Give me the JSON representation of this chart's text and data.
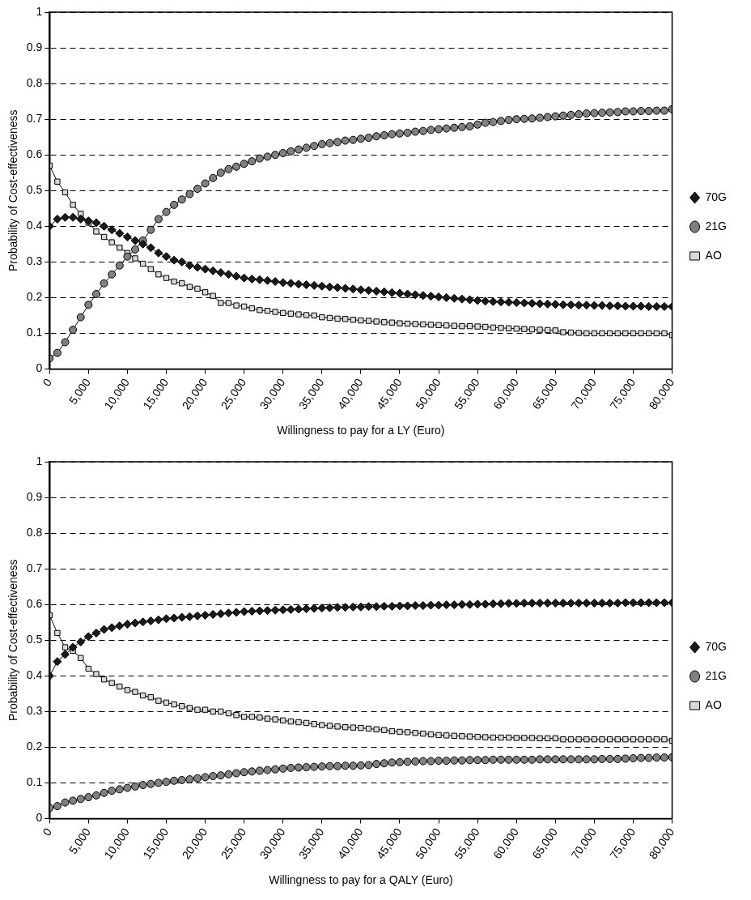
{
  "chart_data": [
    {
      "type": "line",
      "xlabel": "Willingness to pay for a LY (Euro)",
      "ylabel": "Probability of Cost-effectiveness",
      "legend": "right",
      "grid": "y",
      "ylim": [
        0,
        1
      ],
      "yticks": [
        0,
        0.1,
        0.2,
        0.3,
        0.4,
        0.5,
        0.6,
        0.7,
        0.8,
        0.9,
        1
      ],
      "xlim": [
        0,
        80000
      ],
      "xticks": [
        0,
        {
          "value": 5000,
          "label": "5,000"
        },
        {
          "value": 10000,
          "label": "10,000"
        },
        {
          "value": 15000,
          "label": "15,000"
        },
        {
          "value": 20000,
          "label": "20,000"
        },
        {
          "value": 25000,
          "label": "25,000"
        },
        {
          "value": 30000,
          "label": "30,000"
        },
        {
          "value": 35000,
          "label": "35,000"
        },
        {
          "value": 40000,
          "label": "40,000"
        },
        {
          "value": 45000,
          "label": "45,000"
        },
        {
          "value": 50000,
          "label": "50,000"
        },
        {
          "value": 55000,
          "label": "55,000"
        },
        {
          "value": 60000,
          "label": "60,000"
        },
        {
          "value": 65000,
          "label": "65,000"
        },
        {
          "value": 70000,
          "label": "70,000"
        },
        {
          "value": 75000,
          "label": "75,000"
        },
        {
          "value": 80000,
          "label": "80,000"
        }
      ],
      "x": [
        0,
        1000,
        2000,
        3000,
        4000,
        5000,
        6000,
        7000,
        8000,
        9000,
        10000,
        11000,
        12000,
        13000,
        14000,
        15000,
        16000,
        17000,
        18000,
        19000,
        20000,
        21000,
        22000,
        23000,
        24000,
        25000,
        26000,
        27000,
        28000,
        29000,
        30000,
        31000,
        32000,
        33000,
        34000,
        35000,
        36000,
        37000,
        38000,
        39000,
        40000,
        41000,
        42000,
        43000,
        44000,
        45000,
        46000,
        47000,
        48000,
        49000,
        50000,
        51000,
        52000,
        53000,
        54000,
        55000,
        56000,
        57000,
        58000,
        59000,
        60000,
        61000,
        62000,
        63000,
        64000,
        65000,
        66000,
        67000,
        68000,
        69000,
        70000,
        71000,
        72000,
        73000,
        74000,
        75000,
        76000,
        77000,
        78000,
        79000,
        80000
      ],
      "series": [
        {
          "name": "70G",
          "color": "#1a1a1a",
          "marker": "diamond",
          "values": [
            0.4,
            0.42,
            0.425,
            0.425,
            0.42,
            0.415,
            0.41,
            0.4,
            0.39,
            0.38,
            0.37,
            0.36,
            0.35,
            0.34,
            0.325,
            0.315,
            0.305,
            0.3,
            0.29,
            0.285,
            0.28,
            0.275,
            0.27,
            0.265,
            0.26,
            0.255,
            0.252,
            0.25,
            0.248,
            0.245,
            0.242,
            0.24,
            0.238,
            0.236,
            0.234,
            0.232,
            0.23,
            0.228,
            0.226,
            0.224,
            0.222,
            0.22,
            0.218,
            0.216,
            0.214,
            0.212,
            0.21,
            0.208,
            0.206,
            0.204,
            0.202,
            0.2,
            0.198,
            0.196,
            0.194,
            0.192,
            0.19,
            0.189,
            0.188,
            0.187,
            0.186,
            0.185,
            0.184,
            0.183,
            0.182,
            0.181,
            0.18,
            0.18,
            0.179,
            0.179,
            0.178,
            0.178,
            0.177,
            0.177,
            0.176,
            0.176,
            0.176,
            0.175,
            0.175,
            0.175,
            0.175
          ]
        },
        {
          "name": "21G",
          "color": "#808080",
          "marker": "circle",
          "values": [
            0.03,
            0.045,
            0.075,
            0.11,
            0.145,
            0.18,
            0.21,
            0.24,
            0.265,
            0.29,
            0.315,
            0.335,
            0.36,
            0.39,
            0.42,
            0.44,
            0.46,
            0.475,
            0.49,
            0.505,
            0.52,
            0.535,
            0.55,
            0.56,
            0.567,
            0.575,
            0.582,
            0.59,
            0.595,
            0.6,
            0.605,
            0.61,
            0.615,
            0.62,
            0.625,
            0.63,
            0.633,
            0.636,
            0.64,
            0.642,
            0.645,
            0.648,
            0.652,
            0.655,
            0.658,
            0.66,
            0.662,
            0.665,
            0.667,
            0.67,
            0.672,
            0.674,
            0.676,
            0.678,
            0.68,
            0.685,
            0.69,
            0.692,
            0.695,
            0.698,
            0.7,
            0.701,
            0.702,
            0.704,
            0.706,
            0.708,
            0.71,
            0.712,
            0.714,
            0.716,
            0.717,
            0.718,
            0.719,
            0.72,
            0.722,
            0.722,
            0.723,
            0.723,
            0.724,
            0.724,
            0.728
          ]
        },
        {
          "name": "AO",
          "color": "#d9d9d9",
          "marker": "square",
          "values": [
            0.57,
            0.525,
            0.495,
            0.46,
            0.435,
            0.41,
            0.385,
            0.37,
            0.355,
            0.34,
            0.325,
            0.31,
            0.295,
            0.28,
            0.265,
            0.255,
            0.245,
            0.24,
            0.23,
            0.225,
            0.215,
            0.205,
            0.185,
            0.185,
            0.178,
            0.175,
            0.17,
            0.165,
            0.163,
            0.16,
            0.157,
            0.155,
            0.153,
            0.151,
            0.15,
            0.145,
            0.143,
            0.141,
            0.14,
            0.138,
            0.136,
            0.135,
            0.133,
            0.131,
            0.13,
            0.128,
            0.127,
            0.126,
            0.125,
            0.124,
            0.123,
            0.122,
            0.121,
            0.12,
            0.12,
            0.119,
            0.118,
            0.116,
            0.115,
            0.114,
            0.113,
            0.112,
            0.111,
            0.11,
            0.109,
            0.108,
            0.103,
            0.102,
            0.101,
            0.1,
            0.1,
            0.1,
            0.1,
            0.1,
            0.1,
            0.1,
            0.1,
            0.1,
            0.1,
            0.1,
            0.095
          ]
        }
      ]
    },
    {
      "type": "line",
      "xlabel": "Willingness to pay for a QALY (Euro)",
      "ylabel": "Probability of Cost-effectiveness",
      "legend": "right",
      "grid": "y",
      "ylim": [
        0,
        1
      ],
      "yticks": [
        0,
        0.1,
        0.2,
        0.3,
        0.4,
        0.5,
        0.6,
        0.7,
        0.8,
        0.9,
        1
      ],
      "xlim": [
        0,
        80000
      ],
      "xticks": [
        0,
        {
          "value": 5000,
          "label": "5,000"
        },
        {
          "value": 10000,
          "label": "10,000"
        },
        {
          "value": 15000,
          "label": "15,000"
        },
        {
          "value": 20000,
          "label": "20,000"
        },
        {
          "value": 25000,
          "label": "25,000"
        },
        {
          "value": 30000,
          "label": "30,000"
        },
        {
          "value": 35000,
          "label": "35,000"
        },
        {
          "value": 40000,
          "label": "40,000"
        },
        {
          "value": 45000,
          "label": "45,000"
        },
        {
          "value": 50000,
          "label": "50,000"
        },
        {
          "value": 55000,
          "label": "55,000"
        },
        {
          "value": 60000,
          "label": "60,000"
        },
        {
          "value": 65000,
          "label": "65,000"
        },
        {
          "value": 70000,
          "label": "70,000"
        },
        {
          "value": 75000,
          "label": "75,000"
        },
        {
          "value": 80000,
          "label": "80,000"
        }
      ],
      "x": [
        0,
        1000,
        2000,
        3000,
        4000,
        5000,
        6000,
        7000,
        8000,
        9000,
        10000,
        11000,
        12000,
        13000,
        14000,
        15000,
        16000,
        17000,
        18000,
        19000,
        20000,
        21000,
        22000,
        23000,
        24000,
        25000,
        26000,
        27000,
        28000,
        29000,
        30000,
        31000,
        32000,
        33000,
        34000,
        35000,
        36000,
        37000,
        38000,
        39000,
        40000,
        41000,
        42000,
        43000,
        44000,
        45000,
        46000,
        47000,
        48000,
        49000,
        50000,
        51000,
        52000,
        53000,
        54000,
        55000,
        56000,
        57000,
        58000,
        59000,
        60000,
        61000,
        62000,
        63000,
        64000,
        65000,
        66000,
        67000,
        68000,
        69000,
        70000,
        71000,
        72000,
        73000,
        74000,
        75000,
        76000,
        77000,
        78000,
        79000,
        80000
      ],
      "series": [
        {
          "name": "70G",
          "color": "#1a1a1a",
          "marker": "diamond",
          "values": [
            0.4,
            0.44,
            0.46,
            0.48,
            0.495,
            0.51,
            0.52,
            0.53,
            0.535,
            0.54,
            0.545,
            0.548,
            0.551,
            0.554,
            0.557,
            0.56,
            0.562,
            0.564,
            0.566,
            0.568,
            0.57,
            0.572,
            0.574,
            0.576,
            0.578,
            0.58,
            0.581,
            0.582,
            0.583,
            0.584,
            0.585,
            0.586,
            0.587,
            0.588,
            0.589,
            0.59,
            0.591,
            0.592,
            0.592,
            0.593,
            0.593,
            0.594,
            0.594,
            0.595,
            0.595,
            0.596,
            0.596,
            0.597,
            0.597,
            0.598,
            0.598,
            0.599,
            0.599,
            0.6,
            0.6,
            0.601,
            0.601,
            0.602,
            0.602,
            0.603,
            0.603,
            0.604,
            0.604,
            0.604,
            0.604,
            0.604,
            0.604,
            0.604,
            0.604,
            0.604,
            0.604,
            0.604,
            0.604,
            0.604,
            0.605,
            0.605,
            0.605,
            0.605,
            0.605,
            0.605,
            0.605
          ]
        },
        {
          "name": "21G",
          "color": "#808080",
          "marker": "circle",
          "values": [
            0.03,
            0.035,
            0.045,
            0.05,
            0.055,
            0.06,
            0.065,
            0.072,
            0.078,
            0.082,
            0.086,
            0.09,
            0.094,
            0.097,
            0.1,
            0.103,
            0.106,
            0.108,
            0.11,
            0.113,
            0.116,
            0.119,
            0.121,
            0.124,
            0.127,
            0.13,
            0.132,
            0.134,
            0.136,
            0.138,
            0.14,
            0.142,
            0.143,
            0.144,
            0.145,
            0.146,
            0.147,
            0.147,
            0.148,
            0.148,
            0.149,
            0.15,
            0.153,
            0.155,
            0.157,
            0.158,
            0.159,
            0.16,
            0.161,
            0.161,
            0.162,
            0.162,
            0.163,
            0.163,
            0.164,
            0.164,
            0.164,
            0.165,
            0.165,
            0.165,
            0.165,
            0.165,
            0.165,
            0.166,
            0.166,
            0.166,
            0.166,
            0.166,
            0.166,
            0.166,
            0.166,
            0.167,
            0.167,
            0.167,
            0.168,
            0.169,
            0.17,
            0.17,
            0.171,
            0.171,
            0.172
          ]
        },
        {
          "name": "AO",
          "color": "#d9d9d9",
          "marker": "square",
          "values": [
            0.57,
            0.52,
            0.48,
            0.47,
            0.45,
            0.42,
            0.405,
            0.39,
            0.38,
            0.37,
            0.36,
            0.355,
            0.345,
            0.34,
            0.33,
            0.325,
            0.32,
            0.315,
            0.31,
            0.305,
            0.305,
            0.3,
            0.3,
            0.295,
            0.29,
            0.285,
            0.285,
            0.283,
            0.28,
            0.278,
            0.275,
            0.272,
            0.27,
            0.268,
            0.265,
            0.262,
            0.26,
            0.258,
            0.256,
            0.255,
            0.254,
            0.252,
            0.25,
            0.248,
            0.245,
            0.243,
            0.242,
            0.24,
            0.238,
            0.236,
            0.234,
            0.233,
            0.232,
            0.231,
            0.23,
            0.229,
            0.228,
            0.227,
            0.227,
            0.227,
            0.226,
            0.226,
            0.226,
            0.225,
            0.225,
            0.225,
            0.222,
            0.222,
            0.222,
            0.222,
            0.222,
            0.222,
            0.222,
            0.222,
            0.222,
            0.222,
            0.222,
            0.222,
            0.222,
            0.222,
            0.218
          ]
        }
      ]
    }
  ]
}
